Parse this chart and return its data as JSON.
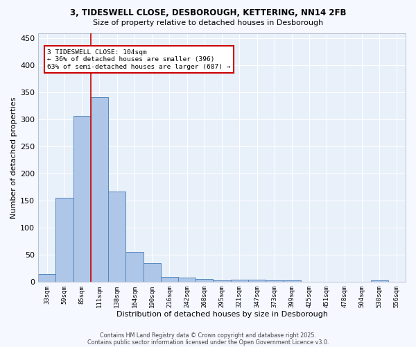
{
  "title1": "3, TIDESWELL CLOSE, DESBOROUGH, KETTERING, NN14 2FB",
  "title2": "Size of property relative to detached houses in Desborough",
  "xlabel": "Distribution of detached houses by size in Desborough",
  "ylabel": "Number of detached properties",
  "bins": [
    "33sqm",
    "59sqm",
    "85sqm",
    "111sqm",
    "138sqm",
    "164sqm",
    "190sqm",
    "216sqm",
    "242sqm",
    "268sqm",
    "295sqm",
    "321sqm",
    "347sqm",
    "373sqm",
    "399sqm",
    "425sqm",
    "451sqm",
    "478sqm",
    "504sqm",
    "530sqm",
    "556sqm"
  ],
  "values": [
    15,
    155,
    307,
    341,
    167,
    55,
    35,
    9,
    8,
    6,
    3,
    4,
    4,
    3,
    3,
    0,
    0,
    0,
    0,
    3,
    0
  ],
  "bar_color": "#aec6e8",
  "bar_edge_color": "#5588bb",
  "vline_color": "#cc0000",
  "annotation_line1": "3 TIDESWELL CLOSE: 104sqm",
  "annotation_line2": "← 36% of detached houses are smaller (396)",
  "annotation_line3": "63% of semi-detached houses are larger (687) →",
  "ylim": [
    0,
    460
  ],
  "yticks": [
    0,
    50,
    100,
    150,
    200,
    250,
    300,
    350,
    400,
    450
  ],
  "fig_bg_color": "#f5f8ff",
  "ax_bg_color": "#e8f0fa",
  "grid_color": "#ffffff",
  "footer1": "Contains HM Land Registry data © Crown copyright and database right 2025.",
  "footer2": "Contains public sector information licensed under the Open Government Licence v3.0."
}
